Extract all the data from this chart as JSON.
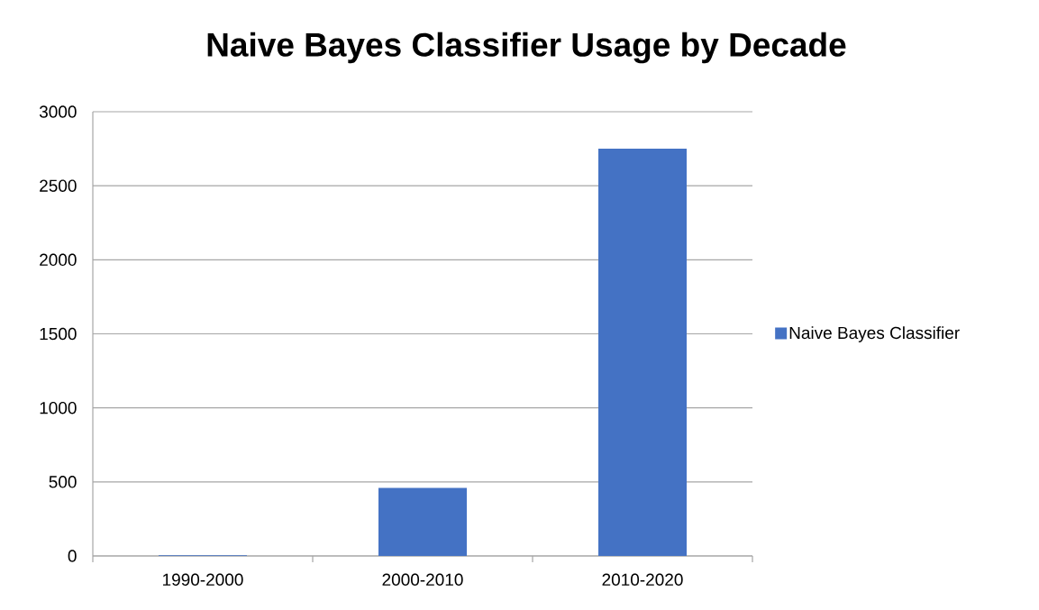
{
  "chart_data": {
    "type": "bar",
    "title": "Naive Bayes Classifier Usage by Decade",
    "categories": [
      "1990-2000",
      "2000-2010",
      "2010-2020"
    ],
    "series": [
      {
        "name": "Naive Bayes Classifier",
        "color": "#4472c4",
        "values": [
          5,
          460,
          2750
        ]
      }
    ],
    "ylim": [
      0,
      3000
    ],
    "yticks": [
      0,
      500,
      1000,
      1500,
      2000,
      2500,
      3000
    ],
    "grid": "y",
    "legend": "right"
  }
}
